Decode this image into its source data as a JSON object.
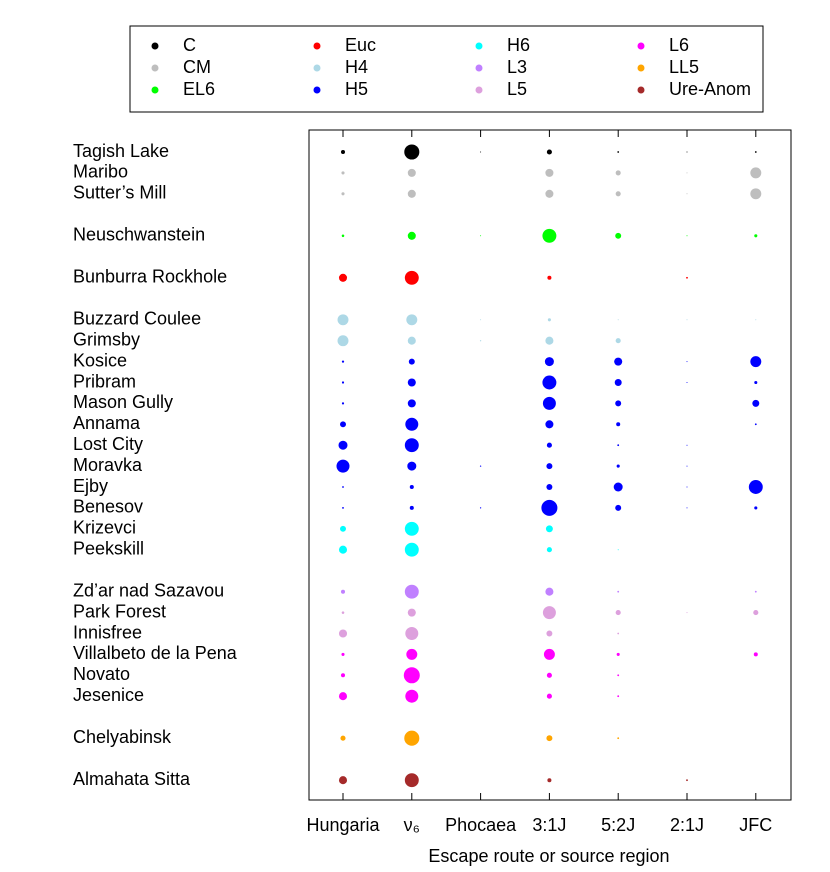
{
  "chart_data": {
    "type": "bubble",
    "xlabel": "Escape route or source region",
    "categories": [
      "Hungaria",
      "ν₆",
      "Phocaea",
      "3:1J",
      "5:2J",
      "2:1J",
      "JFC"
    ],
    "legend": [
      {
        "name": "C",
        "color": "#000000"
      },
      {
        "name": "CM",
        "color": "#bebebe"
      },
      {
        "name": "EL6",
        "color": "#00ff00"
      },
      {
        "name": "Euc",
        "color": "#ff0000"
      },
      {
        "name": "H4",
        "color": "#add8e6"
      },
      {
        "name": "H5",
        "color": "#0000ff"
      },
      {
        "name": "H6",
        "color": "#00ffff"
      },
      {
        "name": "L3",
        "color": "#c080ff"
      },
      {
        "name": "L5",
        "color": "#dda0dd"
      },
      {
        "name": "L6",
        "color": "#ff00ff"
      },
      {
        "name": "LL5",
        "color": "#ffa500"
      },
      {
        "name": "Ure-Anom",
        "color": "#a52a2a"
      }
    ],
    "series": [
      {
        "name": "Tagish Lake",
        "color": "#000000",
        "values": [
          5,
          70,
          0.3,
          8,
          1,
          0.3,
          1
        ]
      },
      {
        "name": "Maribo",
        "color": "#bebebe",
        "values": [
          3,
          20,
          0,
          20,
          8,
          0.3,
          37
        ]
      },
      {
        "name": "Sutter’s Mill",
        "color": "#bebebe",
        "values": [
          3,
          20,
          0,
          20,
          8,
          0.3,
          37
        ]
      },
      {
        "name": "Neuschwanstein",
        "color": "#00ff00",
        "values": [
          2,
          20,
          0.3,
          60,
          11,
          0.3,
          3
        ]
      },
      {
        "name": "Bunburra Rockhole",
        "color": "#ff0000",
        "values": [
          20,
          60,
          0,
          5,
          0,
          1,
          0
        ]
      },
      {
        "name": "Buzzard Coulee",
        "color": "#add8e6",
        "values": [
          37,
          37,
          0.3,
          3,
          0.3,
          0.3,
          0.3
        ]
      },
      {
        "name": "Grimsby",
        "color": "#add8e6",
        "values": [
          37,
          20,
          0.5,
          20,
          8,
          0,
          0
        ]
      },
      {
        "name": "Kosice",
        "color": "#0000ff",
        "values": [
          1.5,
          11,
          0,
          25,
          20,
          0.3,
          37
        ]
      },
      {
        "name": "Pribram",
        "color": "#0000ff",
        "values": [
          1.5,
          20,
          0,
          60,
          15,
          0.3,
          3
        ]
      },
      {
        "name": "Mason Gully",
        "color": "#0000ff",
        "values": [
          1.5,
          20,
          0,
          52,
          11,
          0,
          15
        ]
      },
      {
        "name": "Annama",
        "color": "#0000ff",
        "values": [
          11,
          52,
          0,
          20,
          5,
          0,
          1
        ]
      },
      {
        "name": "Lost City",
        "color": "#0000ff",
        "values": [
          25,
          60,
          0,
          8,
          1,
          0.3,
          0
        ]
      },
      {
        "name": "Moravka",
        "color": "#0000ff",
        "values": [
          52,
          25,
          0.5,
          11,
          3,
          0.3,
          0
        ]
      },
      {
        "name": "Ejby",
        "color": "#0000ff",
        "values": [
          1,
          5,
          0,
          11,
          25,
          0.3,
          60
        ]
      },
      {
        "name": "Benesov",
        "color": "#0000ff",
        "values": [
          1,
          5,
          0.5,
          79,
          11,
          0.3,
          3
        ]
      },
      {
        "name": "Krizevci",
        "color": "#00ffff",
        "values": [
          11,
          60,
          0,
          15,
          0,
          0,
          0
        ]
      },
      {
        "name": "Peekskill",
        "color": "#00ffff",
        "values": [
          20,
          60,
          0,
          8,
          0.3,
          0,
          0
        ]
      },
      {
        "name": "Zd’ar nad Sazavou",
        "color": "#c080ff",
        "values": [
          5,
          60,
          0,
          20,
          1,
          0,
          1
        ]
      },
      {
        "name": "Park Forest",
        "color": "#dda0dd",
        "values": [
          2,
          20,
          0,
          52,
          8,
          0.3,
          8
        ]
      },
      {
        "name": "Innisfree",
        "color": "#dda0dd",
        "values": [
          20,
          52,
          0,
          11,
          1,
          0,
          0
        ]
      },
      {
        "name": "Villalbeto de la Pena",
        "color": "#ff00ff",
        "values": [
          3,
          37,
          0,
          37,
          3,
          0,
          5
        ]
      },
      {
        "name": "Novato",
        "color": "#ff00ff",
        "values": [
          5,
          79,
          0,
          8,
          1,
          0,
          0
        ]
      },
      {
        "name": "Jesenice",
        "color": "#ff00ff",
        "values": [
          20,
          52,
          0,
          8,
          1,
          0,
          0
        ]
      },
      {
        "name": "Chelyabinsk",
        "color": "#ffa500",
        "values": [
          8,
          70,
          0,
          11,
          1,
          0,
          0
        ]
      },
      {
        "name": "Almahata Sitta",
        "color": "#a52a2a",
        "values": [
          20,
          60,
          0,
          5,
          0,
          1,
          0
        ]
      }
    ]
  }
}
